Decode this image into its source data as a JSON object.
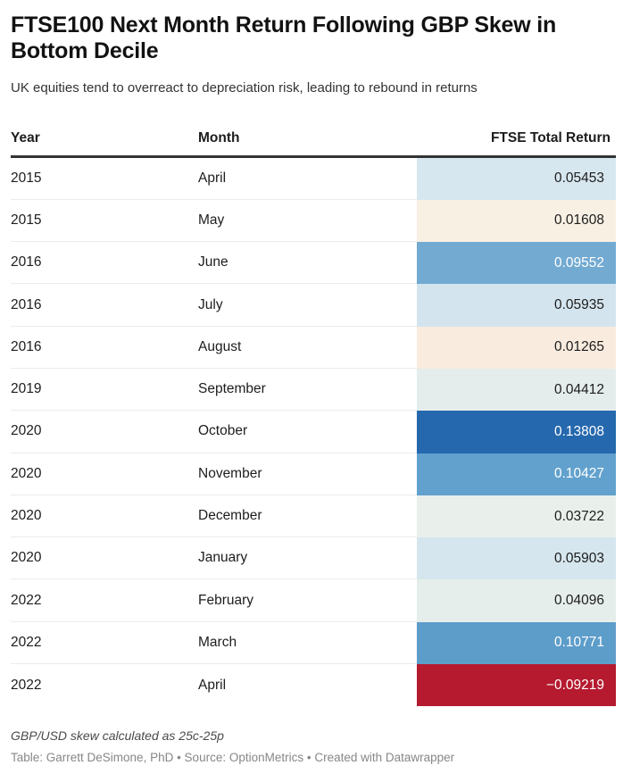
{
  "header": {
    "title": "FTSE100 Next Month Return Following GBP Skew in Bottom Decile",
    "subtitle": "UK equities tend to overreact to depreciation risk, leading to rebound in returns"
  },
  "table": {
    "columns": {
      "year": "Year",
      "month": "Month",
      "value": "FTSE Total Return"
    },
    "rows": [
      {
        "year": "2015",
        "month": "April",
        "value": "0.05453",
        "bg": "#d7e7ef",
        "fg": "#1d1d1d"
      },
      {
        "year": "2015",
        "month": "May",
        "value": "0.01608",
        "bg": "#f8f0e3",
        "fg": "#1d1d1d"
      },
      {
        "year": "2016",
        "month": "June",
        "value": "0.09552",
        "bg": "#72aad2",
        "fg": "#ffffff"
      },
      {
        "year": "2016",
        "month": "July",
        "value": "0.05935",
        "bg": "#d3e4ee",
        "fg": "#1d1d1d"
      },
      {
        "year": "2016",
        "month": "August",
        "value": "0.01265",
        "bg": "#f9ecdf",
        "fg": "#1d1d1d"
      },
      {
        "year": "2019",
        "month": "September",
        "value": "0.04412",
        "bg": "#e4ecec",
        "fg": "#1d1d1d"
      },
      {
        "year": "2020",
        "month": "October",
        "value": "0.13808",
        "bg": "#2568ad",
        "fg": "#ffffff"
      },
      {
        "year": "2020",
        "month": "November",
        "value": "0.10427",
        "bg": "#62a1cd",
        "fg": "#ffffff"
      },
      {
        "year": "2020",
        "month": "December",
        "value": "0.03722",
        "bg": "#e9f0ec",
        "fg": "#1d1d1d"
      },
      {
        "year": "2020",
        "month": "January",
        "value": "0.05903",
        "bg": "#d5e6ee",
        "fg": "#1d1d1d"
      },
      {
        "year": "2022",
        "month": "February",
        "value": "0.04096",
        "bg": "#e5eeea",
        "fg": "#1d1d1d"
      },
      {
        "year": "2022",
        "month": "March",
        "value": "0.10771",
        "bg": "#5d9dca",
        "fg": "#ffffff"
      },
      {
        "year": "2022",
        "month": "April",
        "value": "−0.09219",
        "bg": "#b51a2f",
        "fg": "#ffffff"
      }
    ]
  },
  "footer": {
    "note": "GBP/USD skew calculated as 25c-25p",
    "attribution": "Table: Garrett DeSimone, PhD • Source: OptionMetrics • Created with Datawrapper"
  },
  "chart_data": {
    "type": "table",
    "title": "FTSE100 Next Month Return Following GBP Skew in Bottom Decile",
    "subtitle": "UK equities tend to overreact to depreciation risk, leading to rebound in returns",
    "columns": [
      "Year",
      "Month",
      "FTSE Total Return"
    ],
    "rows": [
      [
        2015,
        "April",
        0.05453
      ],
      [
        2015,
        "May",
        0.01608
      ],
      [
        2016,
        "June",
        0.09552
      ],
      [
        2016,
        "July",
        0.05935
      ],
      [
        2016,
        "August",
        0.01265
      ],
      [
        2019,
        "September",
        0.04412
      ],
      [
        2020,
        "October",
        0.13808
      ],
      [
        2020,
        "November",
        0.10427
      ],
      [
        2020,
        "December",
        0.03722
      ],
      [
        2020,
        "January",
        0.05903
      ],
      [
        2022,
        "February",
        0.04096
      ],
      [
        2022,
        "March",
        0.10771
      ],
      [
        2022,
        "April",
        -0.09219
      ]
    ],
    "heatmap": {
      "palette": "diverging red-cream-blue",
      "min_color": "#b51a2f",
      "mid_color": "#f8f0e3",
      "max_color": "#2568ad",
      "value_min": -0.09219,
      "value_max": 0.13808
    },
    "note": "GBP/USD skew calculated as 25c-25p",
    "attribution": "Table: Garrett DeSimone, PhD • Source: OptionMetrics • Created with Datawrapper"
  }
}
